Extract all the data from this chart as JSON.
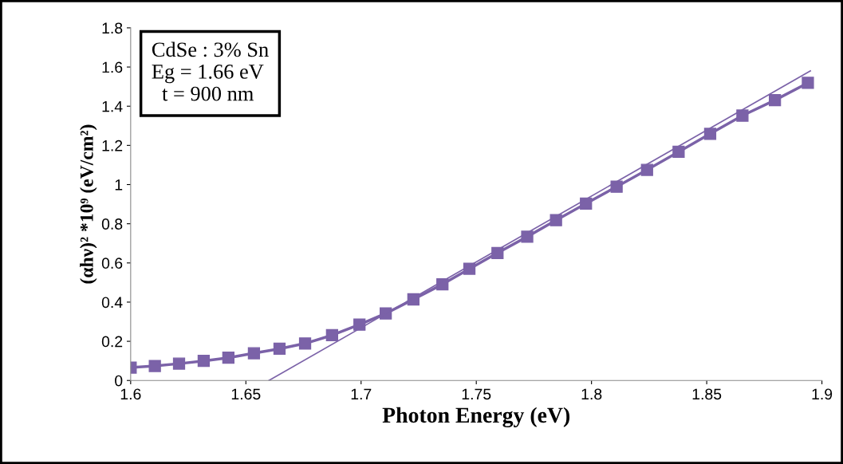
{
  "chart_data": {
    "type": "line",
    "xlabel": "Photon Energy (eV)",
    "ylabel": "(αhν)² *10⁹ (eV/cm²)",
    "annotations": [
      "CdSe : 3% Sn\nEg = 1.66 eV\n  t = 900 nm"
    ],
    "series": [
      {
        "color": "#7b62a8",
        "marker": "square",
        "x": [
          1.6,
          1.6105,
          1.621,
          1.6317,
          1.6424,
          1.6535,
          1.6646,
          1.6757,
          1.6874,
          1.6993,
          1.7107,
          1.7227,
          1.7353,
          1.747,
          1.7592,
          1.7721,
          1.7846,
          1.7976,
          1.8109,
          1.8241,
          1.8378,
          1.8515,
          1.8655,
          1.8796,
          1.8939
        ],
        "values": [
          0.066,
          0.074,
          0.086,
          0.1,
          0.116,
          0.139,
          0.162,
          0.189,
          0.231,
          0.285,
          0.342,
          0.414,
          0.491,
          0.57,
          0.651,
          0.734,
          0.818,
          0.903,
          0.989,
          1.075,
          1.167,
          1.259,
          1.352,
          1.431,
          1.519
        ]
      },
      {
        "color": "#7b62a8",
        "marker": "none",
        "x": [
          1.66,
          1.895
        ],
        "values": [
          0,
          1.58
        ]
      }
    ],
    "xlim": [
      1.6,
      1.9
    ],
    "xticks": [
      1.6,
      1.65,
      1.7,
      1.75,
      1.8,
      1.85,
      1.9
    ],
    "ylim": [
      0,
      1.8
    ],
    "yticks": [
      0,
      0.2,
      0.4,
      0.6,
      0.8,
      {
        "value": 1,
        "label": "1"
      },
      1.2,
      1.4,
      1.6,
      1.8
    ],
    "grid": false,
    "legend": false
  }
}
